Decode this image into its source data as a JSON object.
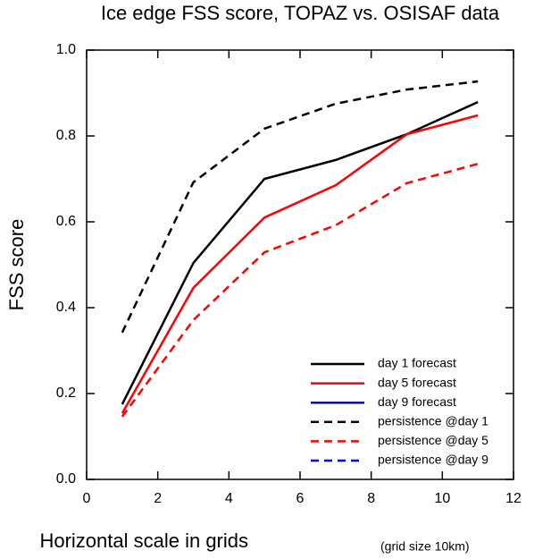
{
  "chart_data": {
    "type": "line",
    "title": "Ice edge FSS score, TOPAZ vs. OSISAF data",
    "xlabel": "Horizontal scale in grids",
    "xlabel_note": "(grid size 10km)",
    "ylabel": "FSS score",
    "x": [
      1,
      3,
      5,
      7,
      9,
      11
    ],
    "series": [
      {
        "name": "day 1 forecast",
        "color": "#000000",
        "dashed": false,
        "values": [
          0.175,
          0.504,
          0.7,
          0.744,
          0.804,
          0.879
        ]
      },
      {
        "name": "day 5 forecast",
        "color": "#ff0000",
        "dashed": false,
        "values": [
          0.154,
          0.446,
          0.61,
          0.685,
          0.804,
          0.848
        ]
      },
      {
        "name": "day 9 forecast",
        "color": "#0000ff",
        "dashed": false,
        "values": [
          null,
          null,
          null,
          null,
          null,
          null
        ]
      },
      {
        "name": "persistence @day 1",
        "color": "#000000",
        "dashed": true,
        "values": [
          0.342,
          0.692,
          0.817,
          0.875,
          0.908,
          0.927
        ]
      },
      {
        "name": "persistence @day 5",
        "color": "#ff0000",
        "dashed": true,
        "values": [
          0.146,
          0.371,
          0.529,
          0.592,
          0.69,
          0.735
        ]
      },
      {
        "name": "persistence @day 9",
        "color": "#0000ff",
        "dashed": true,
        "values": [
          null,
          null,
          null,
          null,
          null,
          null
        ]
      }
    ],
    "xlim": [
      0,
      12
    ],
    "xticks": [
      0,
      2,
      4,
      6,
      8,
      10,
      12
    ],
    "ylim": [
      0,
      1
    ],
    "yticks": [
      {
        "value": 0,
        "label": "0.0"
      },
      {
        "value": 0.2,
        "label": "0.2"
      },
      {
        "value": 0.4,
        "label": "0.4"
      },
      {
        "value": 0.6,
        "label": "0.6"
      },
      {
        "value": 0.8,
        "label": "0.8"
      },
      {
        "value": 1,
        "label": "1.0"
      }
    ],
    "legend": "lower right"
  }
}
